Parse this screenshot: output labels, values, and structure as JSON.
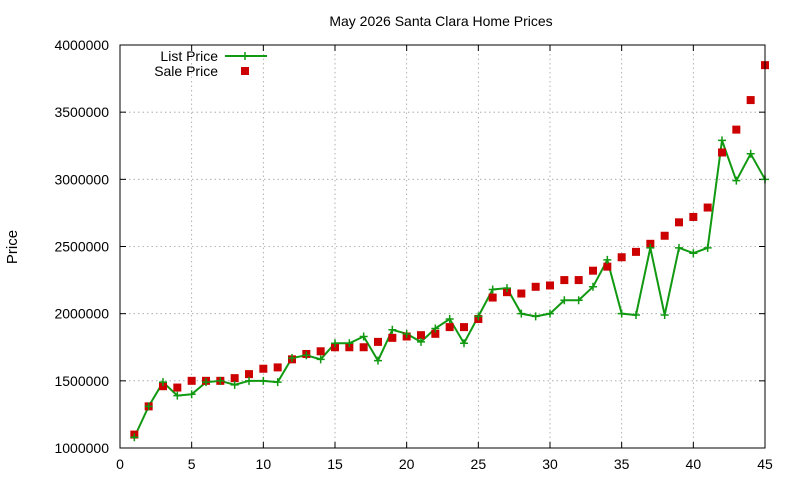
{
  "chart_data": {
    "type": "line",
    "title": "May 2026 Santa Clara Home Prices",
    "xlabel": "",
    "ylabel": "Price",
    "xlim": [
      0,
      45
    ],
    "ylim": [
      1000000,
      4000000
    ],
    "xticks": [
      0,
      5,
      10,
      15,
      20,
      25,
      30,
      35,
      40,
      45
    ],
    "yticks": [
      1000000,
      1500000,
      2000000,
      2500000,
      3000000,
      3500000,
      4000000
    ],
    "grid": true,
    "legend": "top-left",
    "colors": {
      "list": "#119911",
      "sale": "#cc0000"
    },
    "series": [
      {
        "name": "List Price",
        "style": "linespoints",
        "x": [
          1,
          2,
          3,
          4,
          5,
          6,
          7,
          8,
          9,
          10,
          11,
          12,
          13,
          14,
          15,
          16,
          17,
          18,
          19,
          20,
          21,
          22,
          23,
          24,
          25,
          26,
          27,
          28,
          29,
          30,
          31,
          32,
          33,
          34,
          35,
          36,
          37,
          38,
          39,
          40,
          41,
          42,
          43,
          44,
          45
        ],
        "values": [
          1080000,
          1310000,
          1490000,
          1390000,
          1400000,
          1490000,
          1500000,
          1470000,
          1500000,
          1500000,
          1490000,
          1670000,
          1690000,
          1660000,
          1780000,
          1780000,
          1830000,
          1650000,
          1880000,
          1850000,
          1790000,
          1890000,
          1960000,
          1780000,
          1980000,
          2180000,
          2190000,
          2000000,
          1980000,
          2000000,
          2100000,
          2100000,
          2200000,
          2400000,
          2000000,
          1990000,
          2490000,
          1990000,
          2490000,
          2450000,
          2490000,
          3290000,
          2990000,
          3190000,
          3000000
        ]
      },
      {
        "name": "Sale Price",
        "style": "points",
        "x": [
          1,
          2,
          3,
          4,
          5,
          6,
          7,
          8,
          9,
          10,
          11,
          12,
          13,
          14,
          15,
          16,
          17,
          18,
          19,
          20,
          21,
          22,
          23,
          24,
          25,
          26,
          27,
          28,
          29,
          30,
          31,
          32,
          33,
          34,
          35,
          36,
          37,
          38,
          39,
          40,
          41,
          42,
          43,
          44,
          45
        ],
        "values": [
          1100000,
          1310000,
          1460000,
          1450000,
          1500000,
          1500000,
          1500000,
          1520000,
          1550000,
          1590000,
          1600000,
          1660000,
          1700000,
          1720000,
          1750000,
          1750000,
          1750000,
          1790000,
          1820000,
          1830000,
          1840000,
          1850000,
          1900000,
          1900000,
          1960000,
          2120000,
          2160000,
          2150000,
          2200000,
          2210000,
          2250000,
          2250000,
          2320000,
          2350000,
          2420000,
          2460000,
          2520000,
          2580000,
          2680000,
          2720000,
          2790000,
          3200000,
          3370000,
          3590000,
          3850000
        ]
      }
    ]
  }
}
